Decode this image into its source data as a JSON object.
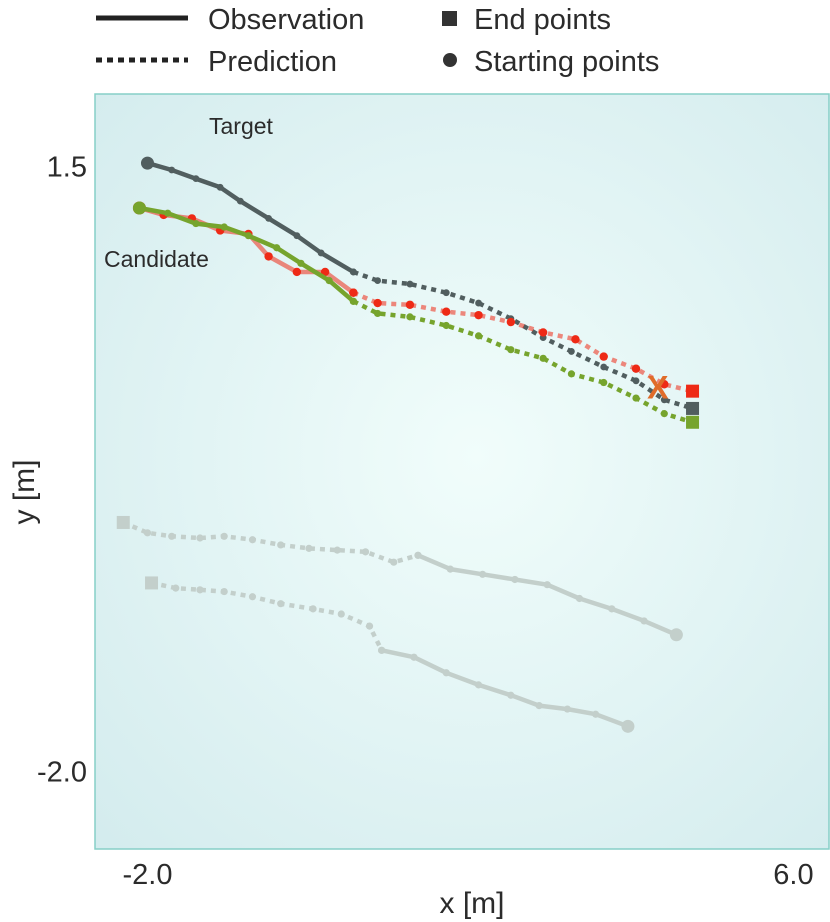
{
  "chart_data": {
    "type": "line",
    "xlabel": "x [m]",
    "ylabel": "y [m]",
    "x_ticks": [
      {
        "value": -2.0,
        "label": "-2.0"
      },
      {
        "value": 6.0,
        "label": "6.0"
      }
    ],
    "y_ticks": [
      {
        "value": 1.5,
        "label": "1.5"
      },
      {
        "value": -2.0,
        "label": "-2.0"
      }
    ],
    "xlim": [
      -2.65,
      6.44
    ],
    "ylim": [
      -2.45,
      1.92
    ],
    "grid": false,
    "legend_position": "top",
    "legend": {
      "observation": "Observation",
      "prediction": "Prediction",
      "end_points": "End points",
      "starting_points": "Starting points"
    },
    "annotations": {
      "target": "Target",
      "candidate": "Candidate"
    },
    "colors": {
      "target": "#515e5f",
      "candidate_red": "#ee2a16",
      "candidate_green": "#76a42d",
      "faded": "#c3cfcb",
      "marker_x": "#e06c2a",
      "frame": "#86cfc7",
      "bg_center": "#f1fdfb",
      "bg_edge": "#d4ecee"
    },
    "series": [
      {
        "role": "target",
        "observed": [
          [
            -2.0,
            1.52
          ],
          [
            -1.7,
            1.48
          ],
          [
            -1.4,
            1.43
          ],
          [
            -1.1,
            1.38
          ],
          [
            -0.85,
            1.3
          ],
          [
            -0.5,
            1.2
          ],
          [
            -0.15,
            1.1
          ],
          [
            0.15,
            1.0
          ],
          [
            0.55,
            0.89
          ]
        ],
        "predicted": [
          [
            0.55,
            0.89
          ],
          [
            0.85,
            0.84
          ],
          [
            1.25,
            0.82
          ],
          [
            1.7,
            0.77
          ],
          [
            2.1,
            0.71
          ],
          [
            2.5,
            0.62
          ],
          [
            2.9,
            0.51
          ],
          [
            3.25,
            0.43
          ],
          [
            3.65,
            0.34
          ],
          [
            4.05,
            0.26
          ],
          [
            4.4,
            0.15
          ],
          [
            4.75,
            0.1
          ]
        ],
        "end": [
          4.75,
          0.1
        ]
      },
      {
        "role": "candidate-red",
        "observed": [
          [
            -2.1,
            1.26
          ],
          [
            -1.8,
            1.22
          ],
          [
            -1.45,
            1.2
          ],
          [
            -1.1,
            1.13
          ],
          [
            -0.75,
            1.11
          ],
          [
            -0.5,
            0.98
          ],
          [
            -0.15,
            0.89
          ],
          [
            0.2,
            0.89
          ],
          [
            0.55,
            0.77
          ]
        ],
        "predicted": [
          [
            0.55,
            0.77
          ],
          [
            0.85,
            0.71
          ],
          [
            1.25,
            0.7
          ],
          [
            1.7,
            0.66
          ],
          [
            2.1,
            0.64
          ],
          [
            2.5,
            0.6
          ],
          [
            2.9,
            0.54
          ],
          [
            3.3,
            0.5
          ],
          [
            3.65,
            0.4
          ],
          [
            4.05,
            0.33
          ],
          [
            4.4,
            0.24
          ],
          [
            4.75,
            0.2
          ]
        ],
        "end": [
          4.75,
          0.2
        ]
      },
      {
        "role": "candidate-green",
        "observed": [
          [
            -2.1,
            1.26
          ],
          [
            -1.75,
            1.23
          ],
          [
            -1.4,
            1.17
          ],
          [
            -1.05,
            1.15
          ],
          [
            -0.75,
            1.1
          ],
          [
            -0.4,
            1.03
          ],
          [
            -0.1,
            0.94
          ],
          [
            0.25,
            0.84
          ],
          [
            0.55,
            0.72
          ]
        ],
        "predicted": [
          [
            0.55,
            0.72
          ],
          [
            0.85,
            0.65
          ],
          [
            1.25,
            0.63
          ],
          [
            1.7,
            0.58
          ],
          [
            2.1,
            0.52
          ],
          [
            2.5,
            0.44
          ],
          [
            2.9,
            0.39
          ],
          [
            3.25,
            0.3
          ],
          [
            3.65,
            0.25
          ],
          [
            4.05,
            0.16
          ],
          [
            4.4,
            0.07
          ],
          [
            4.75,
            0.02
          ]
        ],
        "end": [
          4.75,
          0.02
        ]
      },
      {
        "role": "faded-1",
        "observed": [
          [
            1.35,
            -0.75
          ],
          [
            1.75,
            -0.83
          ],
          [
            2.15,
            -0.86
          ],
          [
            2.55,
            -0.89
          ],
          [
            2.95,
            -0.92
          ],
          [
            3.35,
            -1.0
          ],
          [
            3.75,
            -1.06
          ],
          [
            4.15,
            -1.13
          ],
          [
            4.55,
            -1.21
          ]
        ],
        "predicted": [
          [
            -2.3,
            -0.56
          ],
          [
            -2.0,
            -0.62
          ],
          [
            -1.7,
            -0.64
          ],
          [
            -1.35,
            -0.65
          ],
          [
            -1.05,
            -0.64
          ],
          [
            -0.7,
            -0.66
          ],
          [
            -0.35,
            -0.69
          ],
          [
            0.0,
            -0.71
          ],
          [
            0.35,
            -0.72
          ],
          [
            0.7,
            -0.73
          ],
          [
            1.05,
            -0.79
          ],
          [
            1.35,
            -0.75
          ]
        ],
        "end": [
          -2.3,
          -0.56
        ],
        "start": [
          4.55,
          -1.21
        ]
      },
      {
        "role": "faded-2",
        "observed": [
          [
            0.9,
            -1.3
          ],
          [
            1.3,
            -1.34
          ],
          [
            1.7,
            -1.43
          ],
          [
            2.1,
            -1.5
          ],
          [
            2.5,
            -1.56
          ],
          [
            2.85,
            -1.62
          ],
          [
            3.2,
            -1.64
          ],
          [
            3.55,
            -1.67
          ],
          [
            3.95,
            -1.74
          ]
        ],
        "predicted": [
          [
            -1.95,
            -0.91
          ],
          [
            -1.65,
            -0.94
          ],
          [
            -1.35,
            -0.95
          ],
          [
            -1.05,
            -0.96
          ],
          [
            -0.7,
            -0.99
          ],
          [
            -0.35,
            -1.03
          ],
          [
            0.05,
            -1.06
          ],
          [
            0.4,
            -1.09
          ],
          [
            0.75,
            -1.16
          ],
          [
            0.9,
            -1.3
          ]
        ],
        "end": [
          -1.95,
          -0.91
        ],
        "start": [
          3.95,
          -1.74
        ]
      }
    ],
    "highlight_marker": {
      "symbol": "X",
      "position": [
        4.32,
        0.22
      ]
    }
  }
}
